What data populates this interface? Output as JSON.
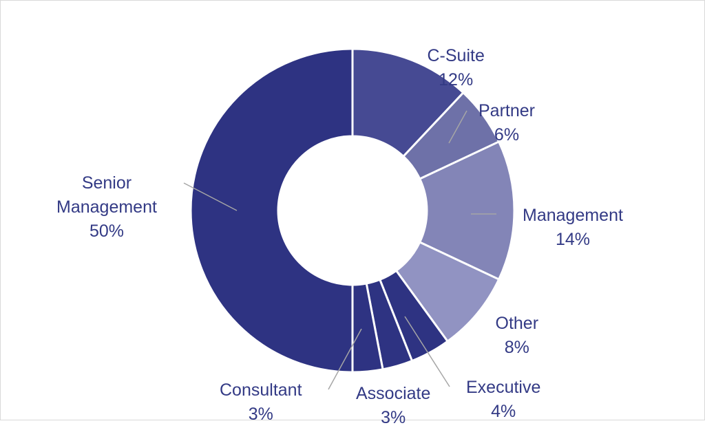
{
  "chart_data": {
    "type": "pie",
    "donut": true,
    "slices": [
      {
        "label": "C-Suite",
        "label_lines": [
          "C-Suite"
        ],
        "value": 12,
        "display": "12%",
        "color": "#464a93"
      },
      {
        "label": "Partner",
        "label_lines": [
          "Partner"
        ],
        "value": 6,
        "display": "6%",
        "color": "#6e71a8"
      },
      {
        "label": "Management",
        "label_lines": [
          "Management"
        ],
        "value": 14,
        "display": "14%",
        "color": "#8385b7"
      },
      {
        "label": "Other",
        "label_lines": [
          "Other"
        ],
        "value": 8,
        "display": "8%",
        "color": "#9193c2"
      },
      {
        "label": "Executive",
        "label_lines": [
          "Executive"
        ],
        "value": 4,
        "display": "4%",
        "color": "#2e3382"
      },
      {
        "label": "Associate",
        "label_lines": [
          "Associate"
        ],
        "value": 3,
        "display": "3%",
        "color": "#2e3382"
      },
      {
        "label": "Consultant",
        "label_lines": [
          "Consultant"
        ],
        "value": 3,
        "display": "3%",
        "color": "#2e3382"
      },
      {
        "label": "Senior Management",
        "label_lines": [
          "Senior",
          "Management"
        ],
        "value": 50,
        "display": "50%",
        "color": "#2e3382"
      }
    ],
    "label_color": "#333a85",
    "leader_line_color": "#a6a6a6",
    "separator_color": "#ffffff",
    "legend": "none"
  }
}
